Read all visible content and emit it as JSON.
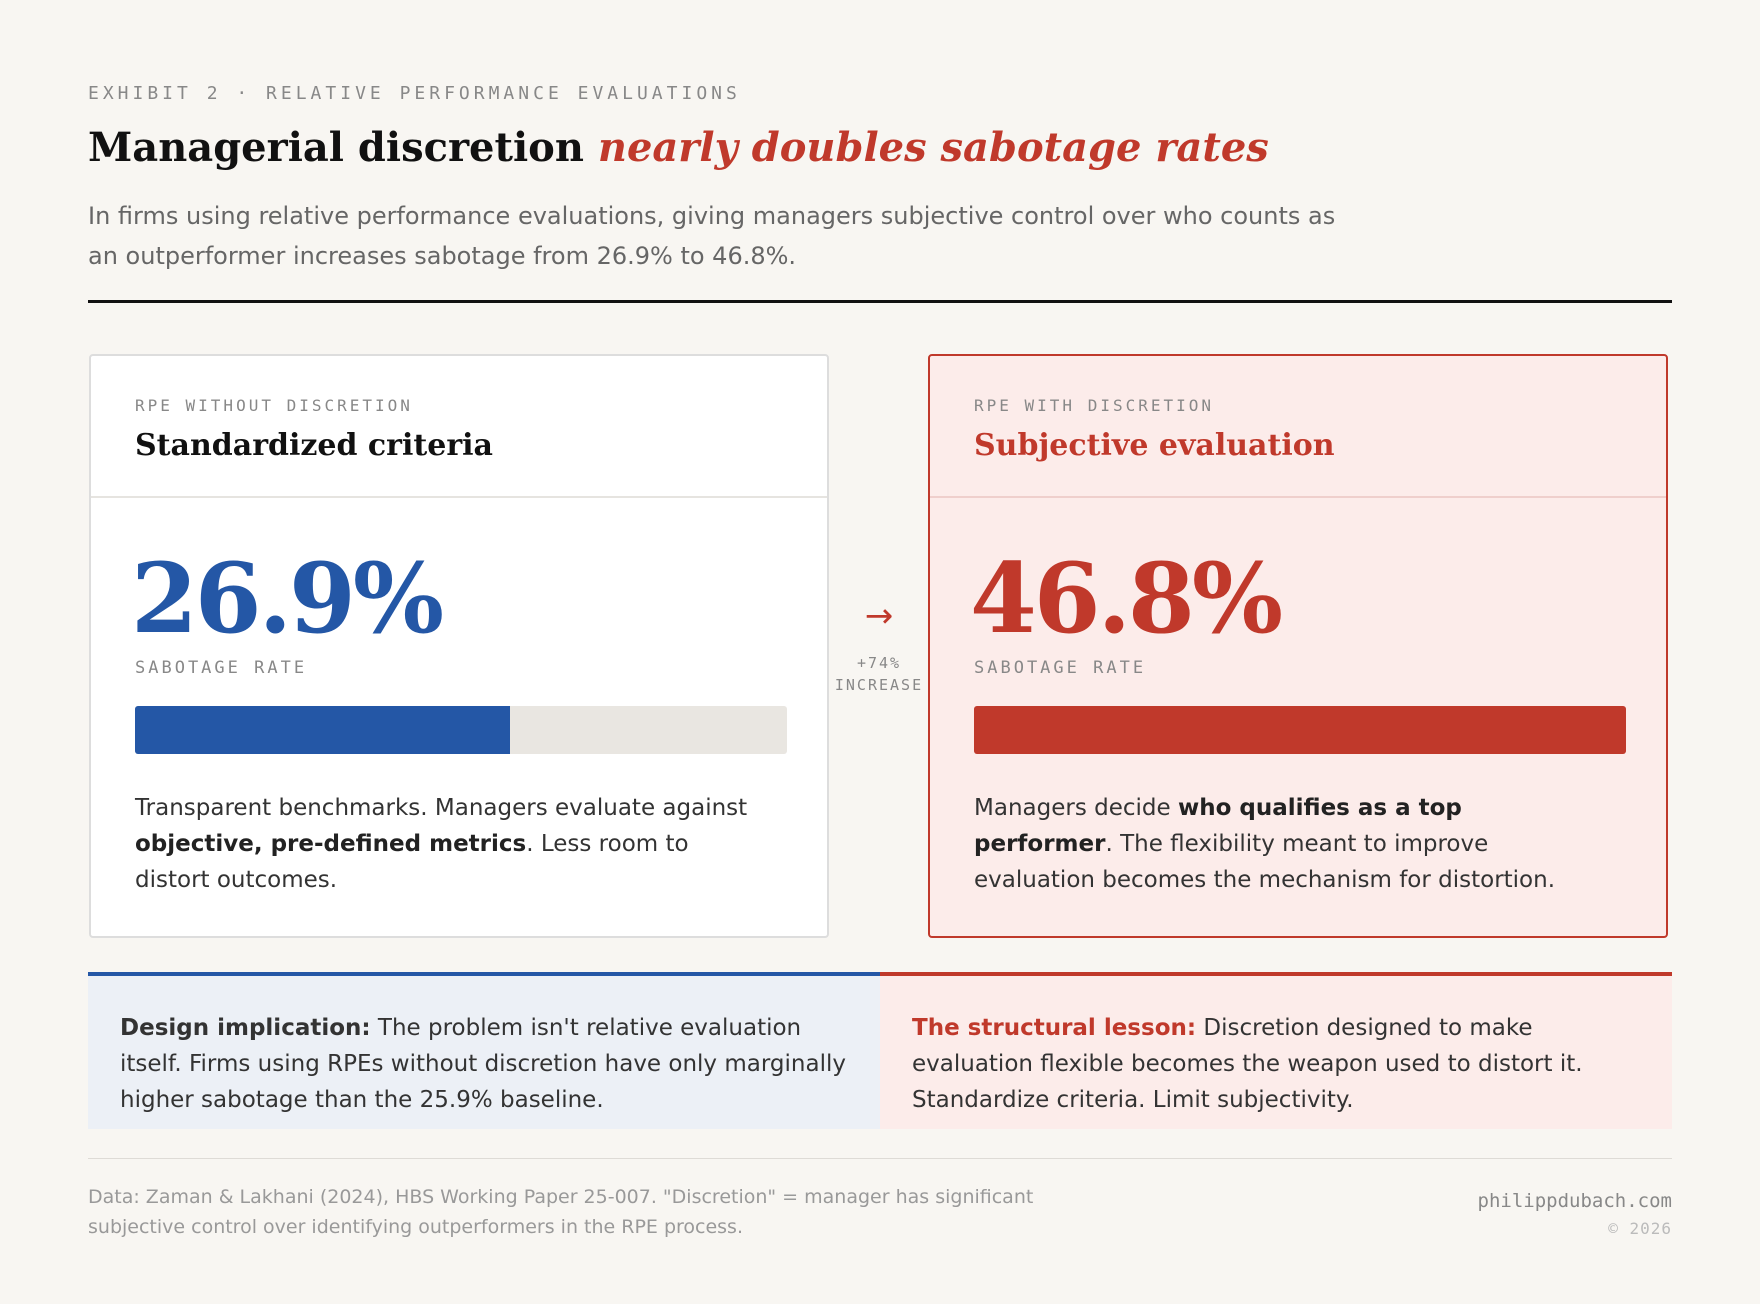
{
  "header": {
    "eyebrow": "EXHIBIT 2 · RELATIVE PERFORMANCE EVALUATIONS",
    "title_plain": "Managerial discretion",
    "title_emphasis": "nearly doubles sabotage rates",
    "subtitle": "In firms using relative performance evaluations, giving managers subjective control over who counts as an outperformer increases sabotage from 26.9% to 46.8%."
  },
  "cards": [
    {
      "eyebrow": "RPE WITHOUT DISCRETION",
      "title": "Standardized criteria",
      "value": 26.9,
      "value_label": "26.9%",
      "metric_label": "SABOTAGE RATE",
      "body_before": "Transparent benchmarks. Managers evaluate against ",
      "body_bold": "objective, pre-defined metrics",
      "body_after": ". Less room to distort outcomes."
    },
    {
      "eyebrow": "RPE WITH DISCRETION",
      "title": "Subjective evaluation",
      "value": 46.8,
      "value_label": "46.8%",
      "metric_label": "SABOTAGE RATE",
      "body_before": "Managers decide ",
      "body_bold": "who qualifies as a top performer",
      "body_after": ". The flexibility meant to improve evaluation becomes the mechanism for distortion."
    }
  ],
  "change": {
    "arrow": "→",
    "label": "+74%",
    "sub": "INCREASE"
  },
  "notes": [
    {
      "lead": "Design implication:",
      "text": " The problem isn't relative evaluation itself. Firms using RPEs without discretion have only marginally higher sabotage than the 25.9% baseline."
    },
    {
      "lead": "The structural lesson:",
      "text": " Discretion designed to make evaluation flexible becomes the weapon used to distort it. Standardize criteria. Limit subjectivity."
    }
  ],
  "footer": {
    "source": "Data: Zaman & Lakhani (2024), HBS Working Paper 25-007. \"Discretion\" = manager has significant subjective control over identifying outperformers in the RPE process.",
    "site": "philippdubach.com",
    "copyright": "© 2026"
  }
}
